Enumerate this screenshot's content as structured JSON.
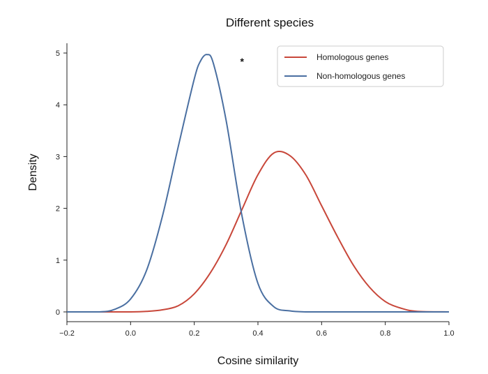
{
  "chart_data": {
    "type": "line",
    "title": "Different species",
    "xlabel": "Cosine similarity",
    "ylabel": "Density",
    "xlim": [
      -0.2,
      1.0
    ],
    "ylim": [
      0,
      5
    ],
    "xticks": [
      -0.2,
      0.0,
      0.2,
      0.4,
      0.6,
      0.8,
      1.0
    ],
    "xtick_labels": [
      "−0.2",
      "0.0",
      "0.2",
      "0.4",
      "0.6",
      "0.8",
      "1.0"
    ],
    "yticks": [
      0,
      1,
      2,
      3,
      4,
      5
    ],
    "ytick_labels": [
      "0",
      "1",
      "2",
      "3",
      "4",
      "5"
    ],
    "grid": false,
    "legend_position": "top-right",
    "annotations": [
      {
        "text": "*",
        "x": 0.35,
        "y": 4.85
      }
    ],
    "series": [
      {
        "name": "Homologous genes",
        "color": "#c8473a",
        "x": [
          -0.2,
          -0.1,
          0.0,
          0.05,
          0.1,
          0.15,
          0.2,
          0.25,
          0.3,
          0.35,
          0.4,
          0.45,
          0.5,
          0.55,
          0.6,
          0.65,
          0.7,
          0.75,
          0.8,
          0.85,
          0.9,
          1.0
        ],
        "y": [
          0.0,
          0.0,
          0.0,
          0.01,
          0.04,
          0.12,
          0.35,
          0.75,
          1.3,
          1.98,
          2.65,
          3.07,
          3.02,
          2.65,
          2.05,
          1.45,
          0.9,
          0.48,
          0.2,
          0.07,
          0.01,
          0.0
        ]
      },
      {
        "name": "Non-homologous genes",
        "color": "#4a6fa1",
        "x": [
          -0.2,
          -0.1,
          -0.05,
          0.0,
          0.05,
          0.1,
          0.15,
          0.2,
          0.22,
          0.24,
          0.26,
          0.3,
          0.35,
          0.4,
          0.45,
          0.5,
          0.55,
          0.6,
          1.0
        ],
        "y": [
          0.0,
          0.0,
          0.05,
          0.25,
          0.8,
          1.85,
          3.2,
          4.5,
          4.85,
          4.97,
          4.8,
          3.7,
          1.85,
          0.55,
          0.1,
          0.02,
          0.0,
          0.0,
          0.0
        ]
      }
    ]
  }
}
